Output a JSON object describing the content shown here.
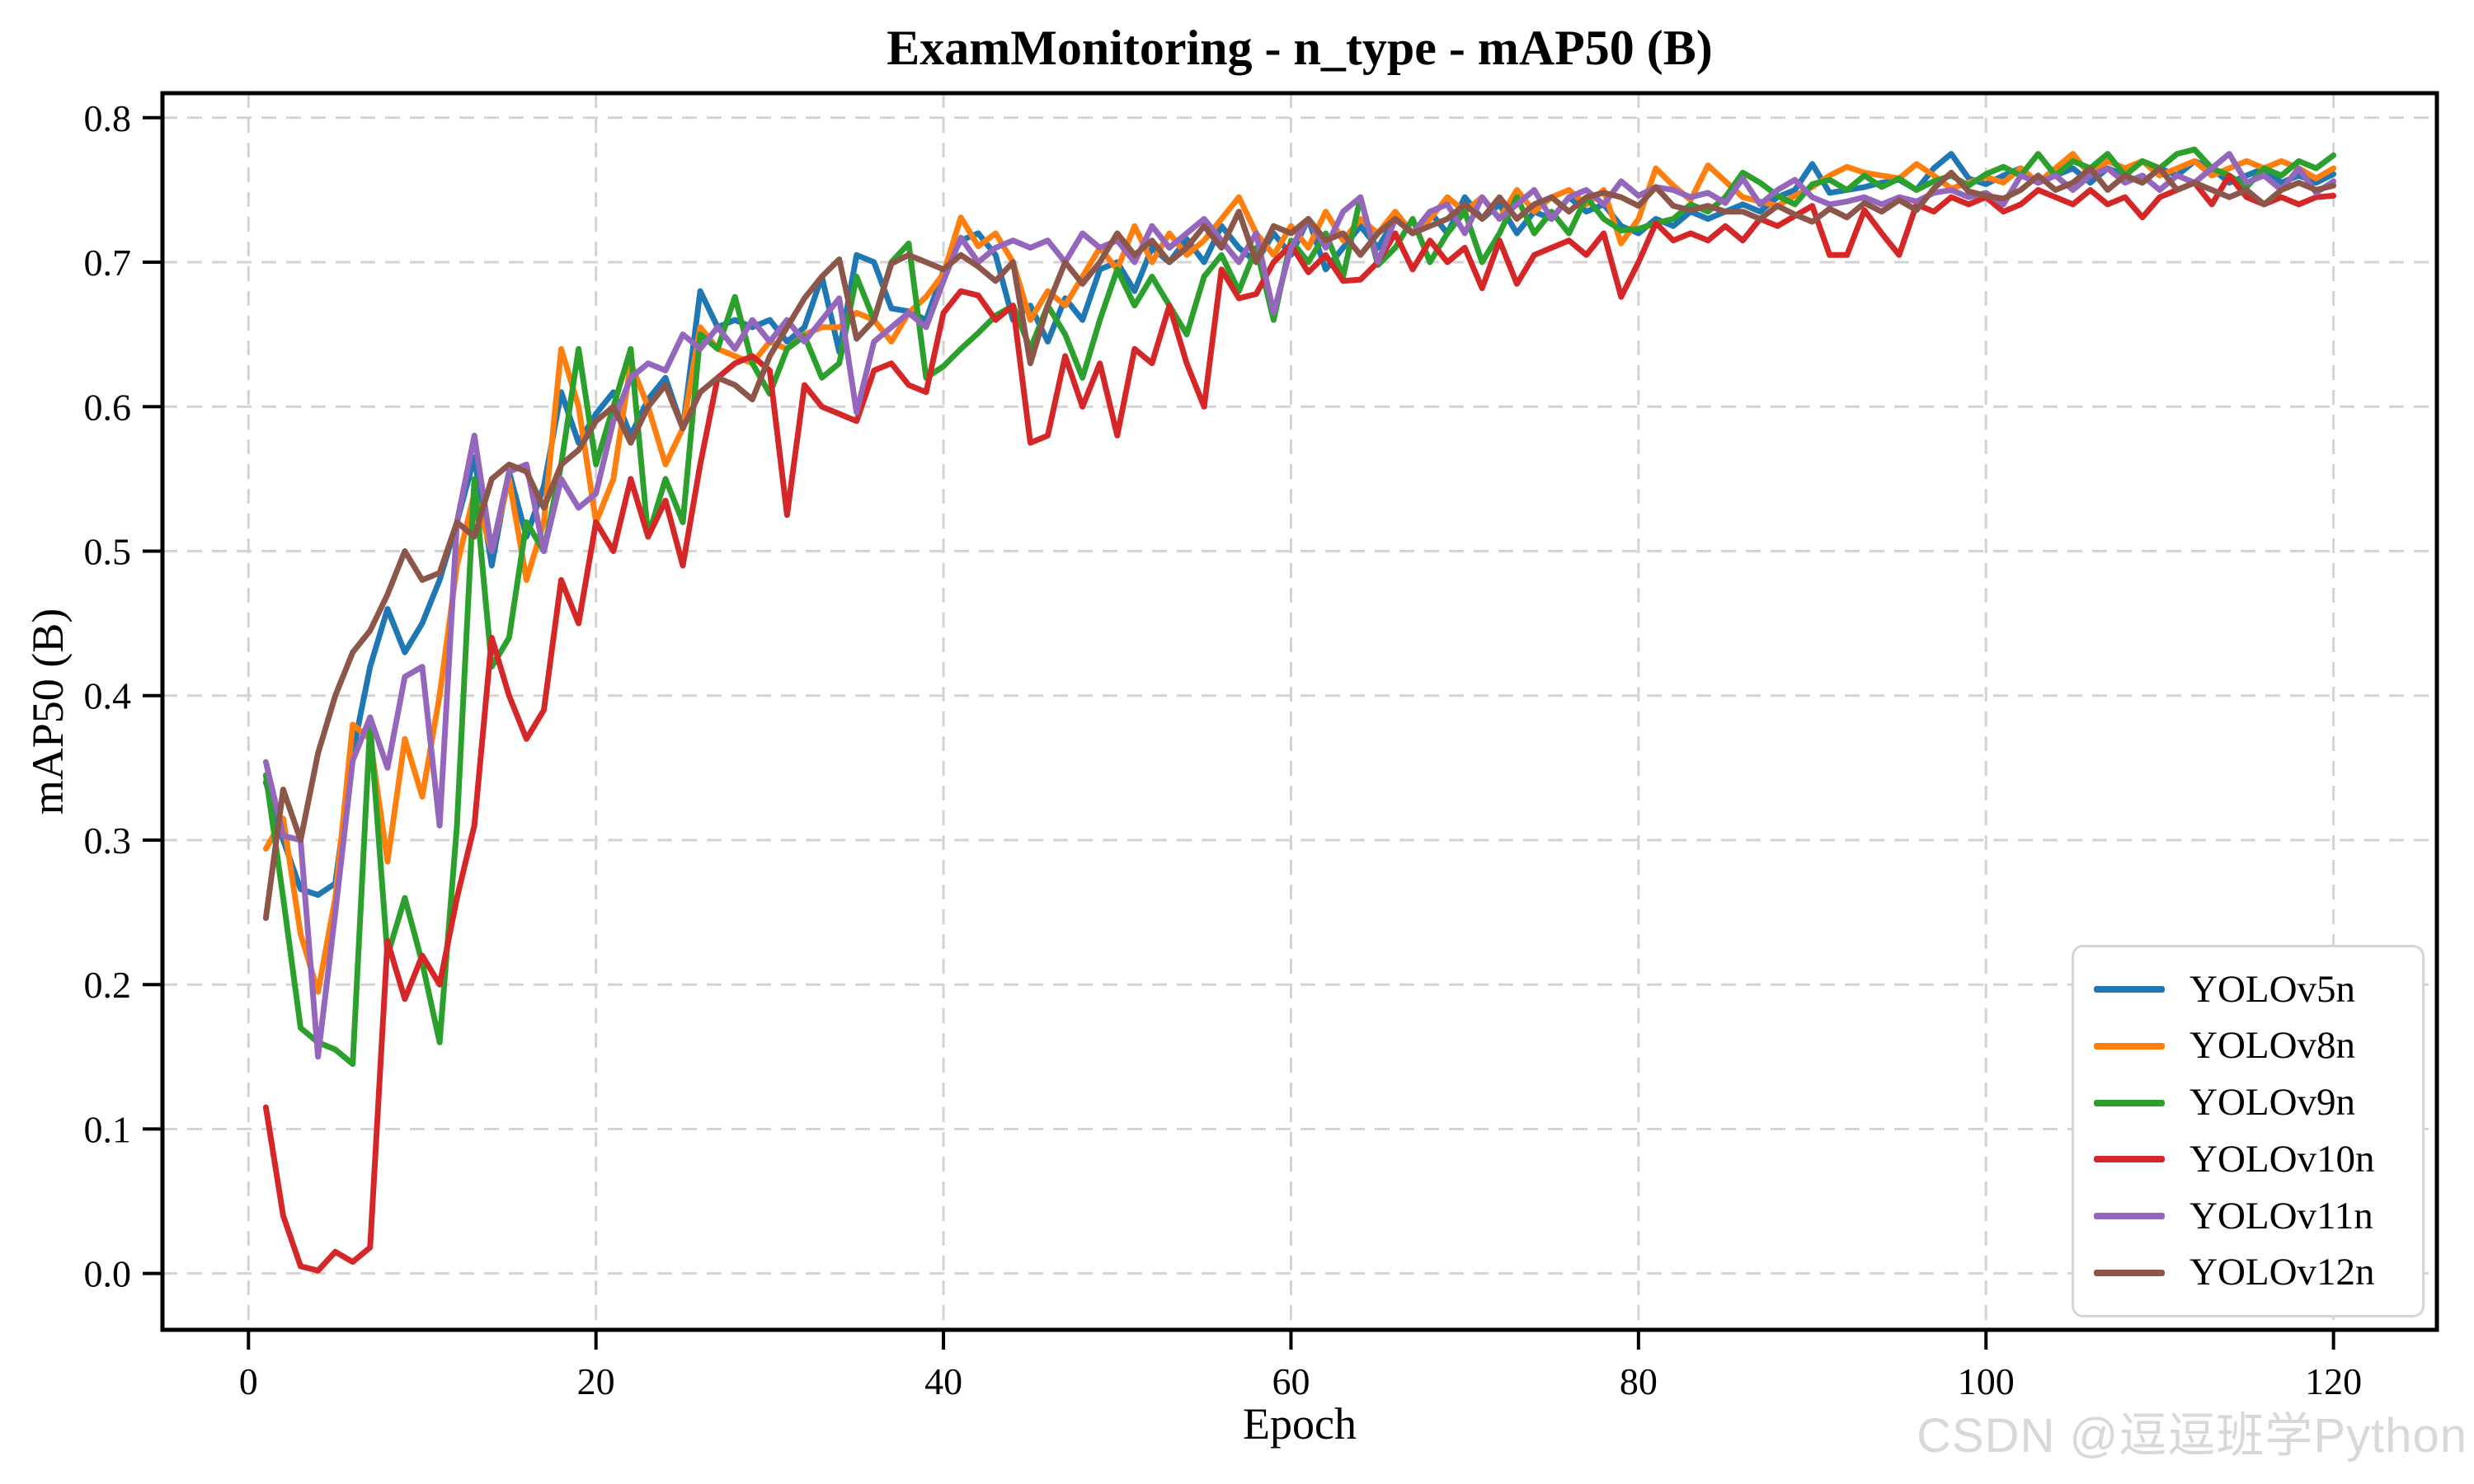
{
  "chart_data": {
    "type": "line",
    "title": "ExamMonitoring - n_type - mAP50 (B)",
    "xlabel": "Epoch",
    "ylabel": "mAP50 (B)",
    "xlim": [
      -4.95,
      125.95
    ],
    "ylim": [
      -0.039,
      0.817
    ],
    "x_ticks": [
      0,
      20,
      40,
      60,
      80,
      100,
      120
    ],
    "x_tick_labels": [
      "0",
      "20",
      "40",
      "60",
      "80",
      "100",
      "120"
    ],
    "y_ticks": [
      0.0,
      0.1,
      0.2,
      0.3,
      0.4,
      0.5,
      0.6,
      0.7,
      0.8
    ],
    "y_tick_labels": [
      "0.0",
      "0.1",
      "0.2",
      "0.3",
      "0.4",
      "0.5",
      "0.6",
      "0.7",
      "0.8"
    ],
    "grid": true,
    "grid_style": "dashed",
    "legend_position": "lower right",
    "x_start_epoch": 1,
    "series": [
      {
        "name": "YOLOv5n",
        "color": "#1f77b4",
        "values": [
          0.34,
          0.3,
          0.266,
          0.262,
          0.27,
          0.36,
          0.42,
          0.46,
          0.43,
          0.45,
          0.48,
          0.52,
          0.565,
          0.49,
          0.555,
          0.51,
          0.545,
          0.61,
          0.575,
          0.595,
          0.61,
          0.58,
          0.605,
          0.62,
          0.585,
          0.68,
          0.655,
          0.66,
          0.655,
          0.66,
          0.645,
          0.655,
          0.69,
          0.638,
          0.705,
          0.7,
          0.668,
          0.666,
          0.66,
          0.694,
          0.715,
          0.72,
          0.705,
          0.66,
          0.67,
          0.645,
          0.675,
          0.66,
          0.695,
          0.7,
          0.68,
          0.71,
          0.7,
          0.716,
          0.7,
          0.725,
          0.71,
          0.7,
          0.72,
          0.705,
          0.73,
          0.695,
          0.71,
          0.725,
          0.71,
          0.73,
          0.72,
          0.735,
          0.72,
          0.745,
          0.73,
          0.74,
          0.72,
          0.735,
          0.73,
          0.745,
          0.735,
          0.74,
          0.725,
          0.72,
          0.73,
          0.725,
          0.735,
          0.73,
          0.735,
          0.74,
          0.735,
          0.745,
          0.75,
          0.768,
          0.748,
          0.75,
          0.752,
          0.755,
          0.757,
          0.75,
          0.765,
          0.775,
          0.758,
          0.754,
          0.76,
          0.765,
          0.755,
          0.76,
          0.765,
          0.755,
          0.765,
          0.76,
          0.755,
          0.765,
          0.76,
          0.77,
          0.765,
          0.755,
          0.76,
          0.765,
          0.755,
          0.76,
          0.755,
          0.761
        ]
      },
      {
        "name": "YOLOv8n",
        "color": "#ff7f0e",
        "values": [
          0.294,
          0.315,
          0.235,
          0.195,
          0.26,
          0.38,
          0.37,
          0.285,
          0.37,
          0.33,
          0.4,
          0.49,
          0.54,
          0.5,
          0.55,
          0.48,
          0.52,
          0.64,
          0.6,
          0.52,
          0.55,
          0.63,
          0.6,
          0.56,
          0.585,
          0.655,
          0.64,
          0.635,
          0.63,
          0.645,
          0.64,
          0.65,
          0.655,
          0.655,
          0.665,
          0.66,
          0.645,
          0.665,
          0.676,
          0.692,
          0.731,
          0.711,
          0.72,
          0.7,
          0.66,
          0.68,
          0.67,
          0.69,
          0.71,
          0.695,
          0.725,
          0.7,
          0.72,
          0.705,
          0.715,
          0.73,
          0.745,
          0.72,
          0.705,
          0.725,
          0.71,
          0.735,
          0.715,
          0.73,
          0.72,
          0.735,
          0.72,
          0.73,
          0.745,
          0.735,
          0.745,
          0.73,
          0.75,
          0.735,
          0.745,
          0.75,
          0.74,
          0.75,
          0.713,
          0.73,
          0.765,
          0.753,
          0.743,
          0.767,
          0.756,
          0.745,
          0.742,
          0.739,
          0.746,
          0.752,
          0.76,
          0.766,
          0.762,
          0.76,
          0.758,
          0.768,
          0.76,
          0.751,
          0.755,
          0.759,
          0.755,
          0.765,
          0.755,
          0.765,
          0.775,
          0.76,
          0.77,
          0.765,
          0.77,
          0.76,
          0.765,
          0.77,
          0.76,
          0.765,
          0.77,
          0.765,
          0.77,
          0.765,
          0.758,
          0.765
        ]
      },
      {
        "name": "YOLOv9n",
        "color": "#2ca02c",
        "values": [
          0.345,
          0.26,
          0.17,
          0.16,
          0.155,
          0.145,
          0.38,
          0.22,
          0.26,
          0.215,
          0.16,
          0.31,
          0.55,
          0.42,
          0.44,
          0.52,
          0.5,
          0.56,
          0.64,
          0.56,
          0.6,
          0.64,
          0.51,
          0.55,
          0.52,
          0.65,
          0.64,
          0.676,
          0.63,
          0.609,
          0.64,
          0.649,
          0.62,
          0.63,
          0.69,
          0.66,
          0.7,
          0.713,
          0.62,
          0.628,
          0.64,
          0.651,
          0.663,
          0.67,
          0.64,
          0.67,
          0.65,
          0.62,
          0.66,
          0.695,
          0.67,
          0.69,
          0.67,
          0.65,
          0.69,
          0.705,
          0.68,
          0.71,
          0.66,
          0.715,
          0.7,
          0.72,
          0.69,
          0.745,
          0.698,
          0.71,
          0.73,
          0.7,
          0.72,
          0.735,
          0.7,
          0.72,
          0.745,
          0.72,
          0.735,
          0.72,
          0.745,
          0.73,
          0.722,
          0.723,
          0.727,
          0.73,
          0.74,
          0.735,
          0.745,
          0.762,
          0.755,
          0.746,
          0.74,
          0.754,
          0.757,
          0.75,
          0.76,
          0.752,
          0.758,
          0.75,
          0.756,
          0.76,
          0.753,
          0.761,
          0.766,
          0.76,
          0.775,
          0.76,
          0.77,
          0.765,
          0.775,
          0.76,
          0.77,
          0.765,
          0.775,
          0.778,
          0.765,
          0.76,
          0.752,
          0.765,
          0.76,
          0.77,
          0.765,
          0.774
        ]
      },
      {
        "name": "YOLOv10n",
        "color": "#d62728",
        "values": [
          0.115,
          0.04,
          0.005,
          0.002,
          0.015,
          0.008,
          0.018,
          0.23,
          0.19,
          0.22,
          0.2,
          0.26,
          0.31,
          0.44,
          0.4,
          0.37,
          0.39,
          0.48,
          0.45,
          0.52,
          0.5,
          0.55,
          0.51,
          0.535,
          0.49,
          0.56,
          0.62,
          0.63,
          0.635,
          0.625,
          0.525,
          0.615,
          0.6,
          0.595,
          0.59,
          0.625,
          0.63,
          0.615,
          0.61,
          0.665,
          0.68,
          0.677,
          0.66,
          0.67,
          0.575,
          0.58,
          0.635,
          0.6,
          0.63,
          0.58,
          0.64,
          0.63,
          0.67,
          0.63,
          0.6,
          0.695,
          0.675,
          0.678,
          0.7,
          0.712,
          0.693,
          0.705,
          0.687,
          0.688,
          0.7,
          0.72,
          0.695,
          0.715,
          0.7,
          0.71,
          0.682,
          0.715,
          0.685,
          0.705,
          0.71,
          0.715,
          0.705,
          0.72,
          0.676,
          0.7,
          0.727,
          0.715,
          0.72,
          0.715,
          0.725,
          0.715,
          0.73,
          0.725,
          0.732,
          0.739,
          0.705,
          0.705,
          0.736,
          0.72,
          0.705,
          0.74,
          0.735,
          0.745,
          0.74,
          0.745,
          0.735,
          0.74,
          0.75,
          0.745,
          0.74,
          0.75,
          0.74,
          0.745,
          0.731,
          0.745,
          0.75,
          0.755,
          0.74,
          0.76,
          0.745,
          0.74,
          0.745,
          0.74,
          0.745,
          0.746
        ]
      },
      {
        "name": "YOLOv11n",
        "color": "#9467bd",
        "values": [
          0.354,
          0.303,
          0.3,
          0.15,
          0.25,
          0.355,
          0.385,
          0.35,
          0.413,
          0.42,
          0.31,
          0.52,
          0.58,
          0.5,
          0.555,
          0.56,
          0.5,
          0.55,
          0.53,
          0.54,
          0.59,
          0.62,
          0.63,
          0.625,
          0.65,
          0.64,
          0.655,
          0.64,
          0.66,
          0.645,
          0.66,
          0.645,
          0.66,
          0.675,
          0.596,
          0.645,
          0.655,
          0.665,
          0.655,
          0.687,
          0.717,
          0.7,
          0.71,
          0.715,
          0.71,
          0.715,
          0.7,
          0.72,
          0.71,
          0.715,
          0.7,
          0.725,
          0.71,
          0.72,
          0.73,
          0.715,
          0.7,
          0.72,
          0.665,
          0.71,
          0.73,
          0.71,
          0.735,
          0.745,
          0.7,
          0.73,
          0.72,
          0.735,
          0.74,
          0.72,
          0.745,
          0.73,
          0.74,
          0.75,
          0.73,
          0.745,
          0.75,
          0.74,
          0.756,
          0.746,
          0.752,
          0.75,
          0.745,
          0.748,
          0.741,
          0.758,
          0.74,
          0.75,
          0.757,
          0.745,
          0.74,
          0.742,
          0.745,
          0.74,
          0.745,
          0.742,
          0.748,
          0.75,
          0.745,
          0.748,
          0.74,
          0.76,
          0.755,
          0.76,
          0.75,
          0.76,
          0.765,
          0.755,
          0.76,
          0.75,
          0.76,
          0.755,
          0.765,
          0.775,
          0.755,
          0.76,
          0.75,
          0.765,
          0.748,
          0.756
        ]
      },
      {
        "name": "YOLOv12n",
        "color": "#8c564b",
        "values": [
          0.246,
          0.335,
          0.3,
          0.36,
          0.4,
          0.43,
          0.445,
          0.47,
          0.5,
          0.48,
          0.485,
          0.52,
          0.51,
          0.55,
          0.56,
          0.555,
          0.53,
          0.56,
          0.57,
          0.59,
          0.6,
          0.575,
          0.6,
          0.615,
          0.585,
          0.61,
          0.62,
          0.615,
          0.605,
          0.635,
          0.655,
          0.675,
          0.69,
          0.702,
          0.647,
          0.66,
          0.699,
          0.705,
          0.7,
          0.695,
          0.705,
          0.697,
          0.687,
          0.7,
          0.63,
          0.67,
          0.7,
          0.685,
          0.7,
          0.72,
          0.705,
          0.715,
          0.7,
          0.71,
          0.725,
          0.71,
          0.735,
          0.7,
          0.725,
          0.72,
          0.73,
          0.715,
          0.72,
          0.705,
          0.72,
          0.73,
          0.72,
          0.725,
          0.73,
          0.74,
          0.73,
          0.745,
          0.73,
          0.74,
          0.745,
          0.735,
          0.745,
          0.748,
          0.745,
          0.739,
          0.752,
          0.739,
          0.736,
          0.739,
          0.735,
          0.735,
          0.73,
          0.739,
          0.733,
          0.728,
          0.737,
          0.731,
          0.741,
          0.735,
          0.743,
          0.736,
          0.751,
          0.762,
          0.749,
          0.746,
          0.744,
          0.75,
          0.76,
          0.75,
          0.755,
          0.765,
          0.75,
          0.76,
          0.755,
          0.765,
          0.75,
          0.755,
          0.75,
          0.745,
          0.75,
          0.74,
          0.75,
          0.755,
          0.75,
          0.753
        ]
      }
    ]
  },
  "watermark": {
    "text": "CSDN @逗逗班学Python",
    "color": "#d8d8d8"
  },
  "colors": {
    "background": "#ffffff",
    "grid": "#d3d3d3",
    "axis": "#000000",
    "legend_border": "#d5d5d5",
    "tick_label": "#000000"
  }
}
